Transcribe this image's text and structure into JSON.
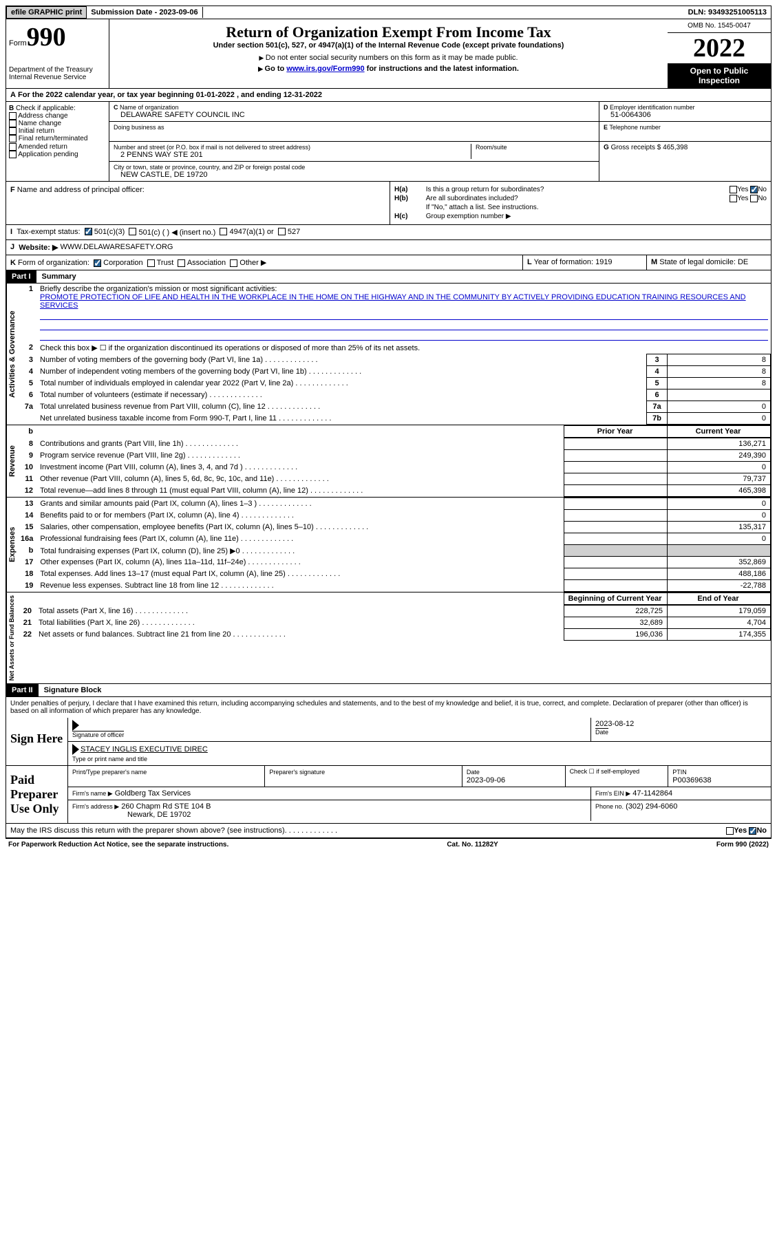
{
  "topbar": {
    "efile": "efile GRAPHIC print",
    "submission": "Submission Date - 2023-09-06",
    "dln": "DLN: 93493251005113"
  },
  "header": {
    "form": "Form",
    "form_num": "990",
    "dept": "Department of the Treasury",
    "irs": "Internal Revenue Service",
    "title": "Return of Organization Exempt From Income Tax",
    "subtitle": "Under section 501(c), 527, or 4947(a)(1) of the Internal Revenue Code (except private foundations)",
    "note1": "Do not enter social security numbers on this form as it may be made public.",
    "note2_pre": "Go to ",
    "note2_link": "www.irs.gov/Form990",
    "note2_post": " for instructions and the latest information.",
    "omb": "OMB No. 1545-0047",
    "year": "2022",
    "inspect": "Open to Public Inspection"
  },
  "secA": {
    "text": "For the 2022 calendar year, or tax year beginning 01-01-2022    , and ending 12-31-2022"
  },
  "secB": {
    "label": "Check if applicable:",
    "items": [
      "Address change",
      "Name change",
      "Initial return",
      "Final return/terminated",
      "Amended return",
      "Application pending"
    ]
  },
  "secC": {
    "name_lbl": "Name of organization",
    "name": "DELAWARE SAFETY COUNCIL INC",
    "dba_lbl": "Doing business as",
    "addr_lbl": "Number and street (or P.O. box if mail is not delivered to street address)",
    "addr": "2 PENNS WAY STE 201",
    "room_lbl": "Room/suite",
    "city_lbl": "City or town, state or province, country, and ZIP or foreign postal code",
    "city": "NEW CASTLE, DE  19720"
  },
  "secD": {
    "ein_lbl": "Employer identification number",
    "ein": "51-0064306",
    "tel_lbl": "Telephone number",
    "gross_lbl": "Gross receipts $",
    "gross": "465,398"
  },
  "secF": {
    "lbl": "Name and address of principal officer:"
  },
  "secH": {
    "a": "Is this a group return for subordinates?",
    "b": "Are all subordinates included?",
    "b_note": "If \"No,\" attach a list. See instructions.",
    "c": "Group exemption number ▶"
  },
  "secI": {
    "lbl": "Tax-exempt status:",
    "opt1": "501(c)(3)",
    "opt2": "501(c) (  ) ◀ (insert no.)",
    "opt3": "4947(a)(1) or",
    "opt4": "527"
  },
  "secJ": {
    "lbl": "Website: ▶",
    "val": "WWW.DELAWARESAFETY.ORG"
  },
  "secK": {
    "lbl": "Form of organization:",
    "o1": "Corporation",
    "o2": "Trust",
    "o3": "Association",
    "o4": "Other ▶"
  },
  "secL": {
    "lbl": "Year of formation:",
    "val": "1919"
  },
  "secM": {
    "lbl": "State of legal domicile:",
    "val": "DE"
  },
  "part1": {
    "hdr": "Part I",
    "title": "Summary",
    "side1": "Activities & Governance",
    "side2": "Revenue",
    "side3": "Expenses",
    "side4": "Net Assets or Fund Balances",
    "q1": "Briefly describe the organization's mission or most significant activities:",
    "mission": "PROMOTE PROTECTION OF LIFE AND HEALTH IN THE WORKPLACE IN THE HOME ON THE HIGHWAY AND IN THE COMMUNITY BY ACTIVELY PROVIDING EDUCATION TRAINING RESOURCES AND SERVICES",
    "q2": "Check this box ▶ ☐ if the organization discontinued its operations or disposed of more than 25% of its net assets.",
    "rows_gov": [
      {
        "n": "3",
        "d": "Number of voting members of the governing body (Part VI, line 1a)",
        "b": "3",
        "v": "8"
      },
      {
        "n": "4",
        "d": "Number of independent voting members of the governing body (Part VI, line 1b)",
        "b": "4",
        "v": "8"
      },
      {
        "n": "5",
        "d": "Total number of individuals employed in calendar year 2022 (Part V, line 2a)",
        "b": "5",
        "v": "8"
      },
      {
        "n": "6",
        "d": "Total number of volunteers (estimate if necessary)",
        "b": "6",
        "v": ""
      },
      {
        "n": "7a",
        "d": "Total unrelated business revenue from Part VIII, column (C), line 12",
        "b": "7a",
        "v": "0"
      },
      {
        "n": "",
        "d": "Net unrelated business taxable income from Form 990-T, Part I, line 11",
        "b": "7b",
        "v": "0"
      }
    ],
    "col_prior": "Prior Year",
    "col_curr": "Current Year",
    "rows_rev": [
      {
        "n": "8",
        "d": "Contributions and grants (Part VIII, line 1h)",
        "p": "",
        "c": "136,271"
      },
      {
        "n": "9",
        "d": "Program service revenue (Part VIII, line 2g)",
        "p": "",
        "c": "249,390"
      },
      {
        "n": "10",
        "d": "Investment income (Part VIII, column (A), lines 3, 4, and 7d )",
        "p": "",
        "c": "0"
      },
      {
        "n": "11",
        "d": "Other revenue (Part VIII, column (A), lines 5, 6d, 8c, 9c, 10c, and 11e)",
        "p": "",
        "c": "79,737"
      },
      {
        "n": "12",
        "d": "Total revenue—add lines 8 through 11 (must equal Part VIII, column (A), line 12)",
        "p": "",
        "c": "465,398"
      }
    ],
    "rows_exp": [
      {
        "n": "13",
        "d": "Grants and similar amounts paid (Part IX, column (A), lines 1–3 )",
        "p": "",
        "c": "0"
      },
      {
        "n": "14",
        "d": "Benefits paid to or for members (Part IX, column (A), line 4)",
        "p": "",
        "c": "0"
      },
      {
        "n": "15",
        "d": "Salaries, other compensation, employee benefits (Part IX, column (A), lines 5–10)",
        "p": "",
        "c": "135,317"
      },
      {
        "n": "16a",
        "d": "Professional fundraising fees (Part IX, column (A), line 11e)",
        "p": "",
        "c": "0"
      },
      {
        "n": "b",
        "d": "Total fundraising expenses (Part IX, column (D), line 25) ▶0",
        "p": "gray",
        "c": "gray"
      },
      {
        "n": "17",
        "d": "Other expenses (Part IX, column (A), lines 11a–11d, 11f–24e)",
        "p": "",
        "c": "352,869"
      },
      {
        "n": "18",
        "d": "Total expenses. Add lines 13–17 (must equal Part IX, column (A), line 25)",
        "p": "",
        "c": "488,186"
      },
      {
        "n": "19",
        "d": "Revenue less expenses. Subtract line 18 from line 12",
        "p": "",
        "c": "-22,788"
      }
    ],
    "col_begin": "Beginning of Current Year",
    "col_end": "End of Year",
    "rows_net": [
      {
        "n": "20",
        "d": "Total assets (Part X, line 16)",
        "p": "228,725",
        "c": "179,059"
      },
      {
        "n": "21",
        "d": "Total liabilities (Part X, line 26)",
        "p": "32,689",
        "c": "4,704"
      },
      {
        "n": "22",
        "d": "Net assets or fund balances. Subtract line 21 from line 20",
        "p": "196,036",
        "c": "174,355"
      }
    ]
  },
  "part2": {
    "hdr": "Part II",
    "title": "Signature Block",
    "decl": "Under penalties of perjury, I declare that I have examined this return, including accompanying schedules and statements, and to the best of my knowledge and belief, it is true, correct, and complete. Declaration of preparer (other than officer) is based on all information of which preparer has any knowledge.",
    "sign_here": "Sign Here",
    "sig_officer": "Signature of officer",
    "sig_date": "2023-08-12",
    "date_lbl": "Date",
    "officer_name": "STACEY INGLIS  EXECUTIVE DIREC",
    "name_lbl": "Type or print name and title",
    "paid": "Paid Preparer Use Only",
    "prep_name_lbl": "Print/Type preparer's name",
    "prep_sig_lbl": "Preparer's signature",
    "prep_date_lbl": "Date",
    "prep_date": "2023-09-06",
    "self_emp": "Check ☐ if self-employed",
    "ptin_lbl": "PTIN",
    "ptin": "P00369638",
    "firm_name_lbl": "Firm's name   ▶",
    "firm_name": "Goldberg Tax Services",
    "firm_ein_lbl": "Firm's EIN ▶",
    "firm_ein": "47-1142864",
    "firm_addr_lbl": "Firm's address ▶",
    "firm_addr": "260 Chapm Rd STE 104 B",
    "firm_city": "Newark, DE  19702",
    "phone_lbl": "Phone no.",
    "phone": "(302) 294-6060",
    "discuss": "May the IRS discuss this return with the preparer shown above? (see instructions)"
  },
  "footer": {
    "left": "For Paperwork Reduction Act Notice, see the separate instructions.",
    "mid": "Cat. No. 11282Y",
    "right": "Form 990 (2022)"
  }
}
